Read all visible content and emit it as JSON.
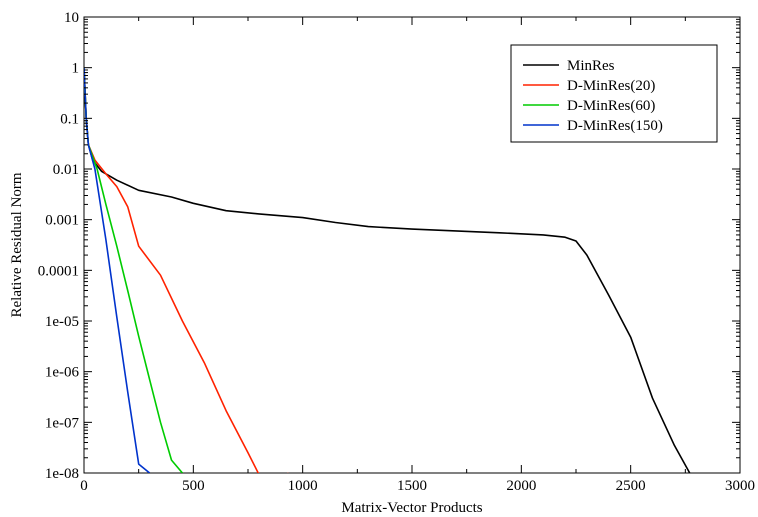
{
  "chart_data": {
    "type": "line",
    "title": "",
    "xlabel": "Matrix-Vector Products",
    "ylabel": "Relative Residual Norm",
    "xlim": [
      0,
      3000
    ],
    "ylim": [
      1e-08,
      10
    ],
    "yscale": "log",
    "grid": false,
    "legend_position": "top-right",
    "x_ticks": [
      {
        "value": 0,
        "label": "0"
      },
      {
        "value": 500,
        "label": "500"
      },
      {
        "value": 1000,
        "label": "1000"
      },
      {
        "value": 1500,
        "label": "1500"
      },
      {
        "value": 2000,
        "label": "2000"
      },
      {
        "value": 2500,
        "label": "2500"
      },
      {
        "value": 3000,
        "label": "3000"
      }
    ],
    "y_ticks": [
      {
        "value": 10,
        "label": "10"
      },
      {
        "value": 1,
        "label": "1"
      },
      {
        "value": 0.1,
        "label": "0.1"
      },
      {
        "value": 0.01,
        "label": "0.01"
      },
      {
        "value": 0.001,
        "label": "0.001"
      },
      {
        "value": 0.0001,
        "label": "0.0001"
      },
      {
        "value": 1e-05,
        "label": "1e-05"
      },
      {
        "value": 1e-06,
        "label": "1e-06"
      },
      {
        "value": 1e-07,
        "label": "1e-07"
      },
      {
        "value": 1e-08,
        "label": "1e-08"
      }
    ],
    "series": [
      {
        "name": "MinRes",
        "color": "#000000",
        "points": [
          [
            0,
            1.0
          ],
          [
            10,
            0.1
          ],
          [
            20,
            0.03
          ],
          [
            40,
            0.015
          ],
          [
            80,
            0.009
          ],
          [
            150,
            0.006
          ],
          [
            250,
            0.0038
          ],
          [
            400,
            0.0028
          ],
          [
            500,
            0.0021
          ],
          [
            650,
            0.0015
          ],
          [
            800,
            0.0013
          ],
          [
            1000,
            0.0011
          ],
          [
            1150,
            0.00088
          ],
          [
            1300,
            0.00073
          ],
          [
            1500,
            0.00065
          ],
          [
            1700,
            0.0006
          ],
          [
            1900,
            0.00055
          ],
          [
            2100,
            0.0005
          ],
          [
            2200,
            0.00045
          ],
          [
            2250,
            0.00038
          ],
          [
            2300,
            0.0002
          ],
          [
            2400,
            3.2e-05
          ],
          [
            2500,
            4.8e-06
          ],
          [
            2600,
            3e-07
          ],
          [
            2700,
            3.5e-08
          ],
          [
            2770,
            1e-08
          ]
        ]
      },
      {
        "name": "D-MinRes(20)",
        "color": "#ff2200",
        "points": [
          [
            0,
            1.0
          ],
          [
            10,
            0.1
          ],
          [
            20,
            0.03
          ],
          [
            50,
            0.015
          ],
          [
            100,
            0.008
          ],
          [
            150,
            0.0045
          ],
          [
            200,
            0.0018
          ],
          [
            250,
            0.0003
          ],
          [
            350,
            8e-05
          ],
          [
            450,
            1e-05
          ],
          [
            550,
            1.5e-06
          ],
          [
            650,
            1.7e-07
          ],
          [
            750,
            2.5e-08
          ],
          [
            850,
            3.5e-09
          ],
          [
            935,
            1e-08
          ]
        ]
      },
      {
        "name": "D-MinRes(60)",
        "color": "#00cc00",
        "points": [
          [
            0,
            1.0
          ],
          [
            10,
            0.1
          ],
          [
            20,
            0.03
          ],
          [
            60,
            0.01
          ],
          [
            100,
            0.002
          ],
          [
            150,
            0.0003
          ],
          [
            200,
            4e-05
          ],
          [
            250,
            5e-06
          ],
          [
            300,
            7e-07
          ],
          [
            350,
            1e-07
          ],
          [
            400,
            1.8e-08
          ],
          [
            450,
            1e-08
          ]
        ]
      },
      {
        "name": "D-MinRes(150)",
        "color": "#0033cc",
        "points": [
          [
            0,
            1.0
          ],
          [
            10,
            0.1
          ],
          [
            20,
            0.03
          ],
          [
            50,
            0.01
          ],
          [
            100,
            0.0004
          ],
          [
            150,
            1.2e-05
          ],
          [
            200,
            4e-07
          ],
          [
            250,
            1.5e-08
          ],
          [
            300,
            1e-08
          ]
        ]
      }
    ]
  }
}
